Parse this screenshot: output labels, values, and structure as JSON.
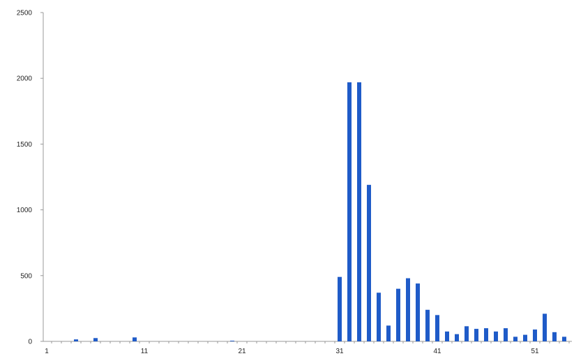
{
  "chart_data": {
    "type": "bar",
    "title": "",
    "xlabel": "",
    "ylabel": "",
    "x": [
      1,
      2,
      3,
      4,
      5,
      6,
      7,
      8,
      9,
      10,
      11,
      12,
      13,
      14,
      15,
      16,
      17,
      18,
      19,
      20,
      21,
      22,
      23,
      24,
      25,
      26,
      27,
      28,
      29,
      30,
      31,
      32,
      33,
      34,
      35,
      36,
      37,
      38,
      39,
      40,
      41,
      42,
      43,
      44,
      45,
      46,
      47,
      48,
      49,
      50,
      51,
      52,
      53,
      54,
      55
    ],
    "values": [
      0,
      0,
      0,
      15,
      0,
      25,
      0,
      0,
      0,
      30,
      0,
      0,
      0,
      0,
      0,
      0,
      0,
      0,
      0,
      5,
      0,
      0,
      0,
      0,
      0,
      0,
      0,
      0,
      0,
      0,
      490,
      1970,
      1970,
      1190,
      370,
      120,
      400,
      480,
      440,
      240,
      200,
      75,
      55,
      115,
      95,
      100,
      75,
      100,
      35,
      50,
      90,
      210,
      70,
      35,
      0
    ],
    "ylim": [
      0,
      2500
    ],
    "yticks": [
      0,
      500,
      1000,
      1500,
      2000,
      2500
    ],
    "xticks": [
      1,
      11,
      21,
      31,
      41,
      51
    ],
    "grid": false,
    "legend": "none",
    "bar_color": "#1f5bc8",
    "axis_color": "#999999"
  }
}
